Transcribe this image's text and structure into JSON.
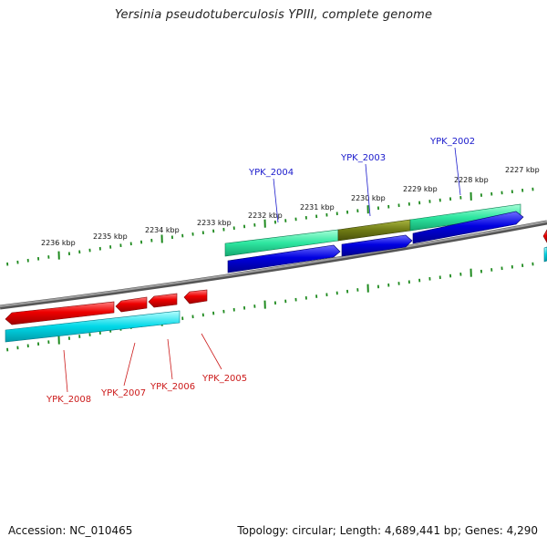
{
  "title": "Yersinia pseudotuberculosis YPIII, complete genome",
  "footer": {
    "accession": "Accession: NC_010465",
    "summary": "Topology: circular; Length: 4,689,441 bp; Genes: 4,290"
  },
  "colors": {
    "tick": "#1e8a1e",
    "backbone": "#8a8a8a",
    "forward_cds": "#0000e0",
    "forward_gene_light": "#2ee6a0",
    "forward_gene_dark": "#6e7a14",
    "reverse_cds": "#ee0000",
    "reverse_gene": "#00d8e8",
    "forward_label": "#1a1acc",
    "reverse_label": "#cc1a1a"
  },
  "scale_labels": [
    "2236 kbp",
    "2235 kbp",
    "2234 kbp",
    "2233 kbp",
    "2232 kbp",
    "2231 kbp",
    "2230 kbp",
    "2229 kbp",
    "2228 kbp",
    "2227 kbp"
  ],
  "forward_genes": [
    "YPK_2004",
    "YPK_2003",
    "YPK_2002"
  ],
  "reverse_genes": [
    "YPK_2008",
    "YPK_2007",
    "YPK_2006",
    "YPK_2005"
  ]
}
